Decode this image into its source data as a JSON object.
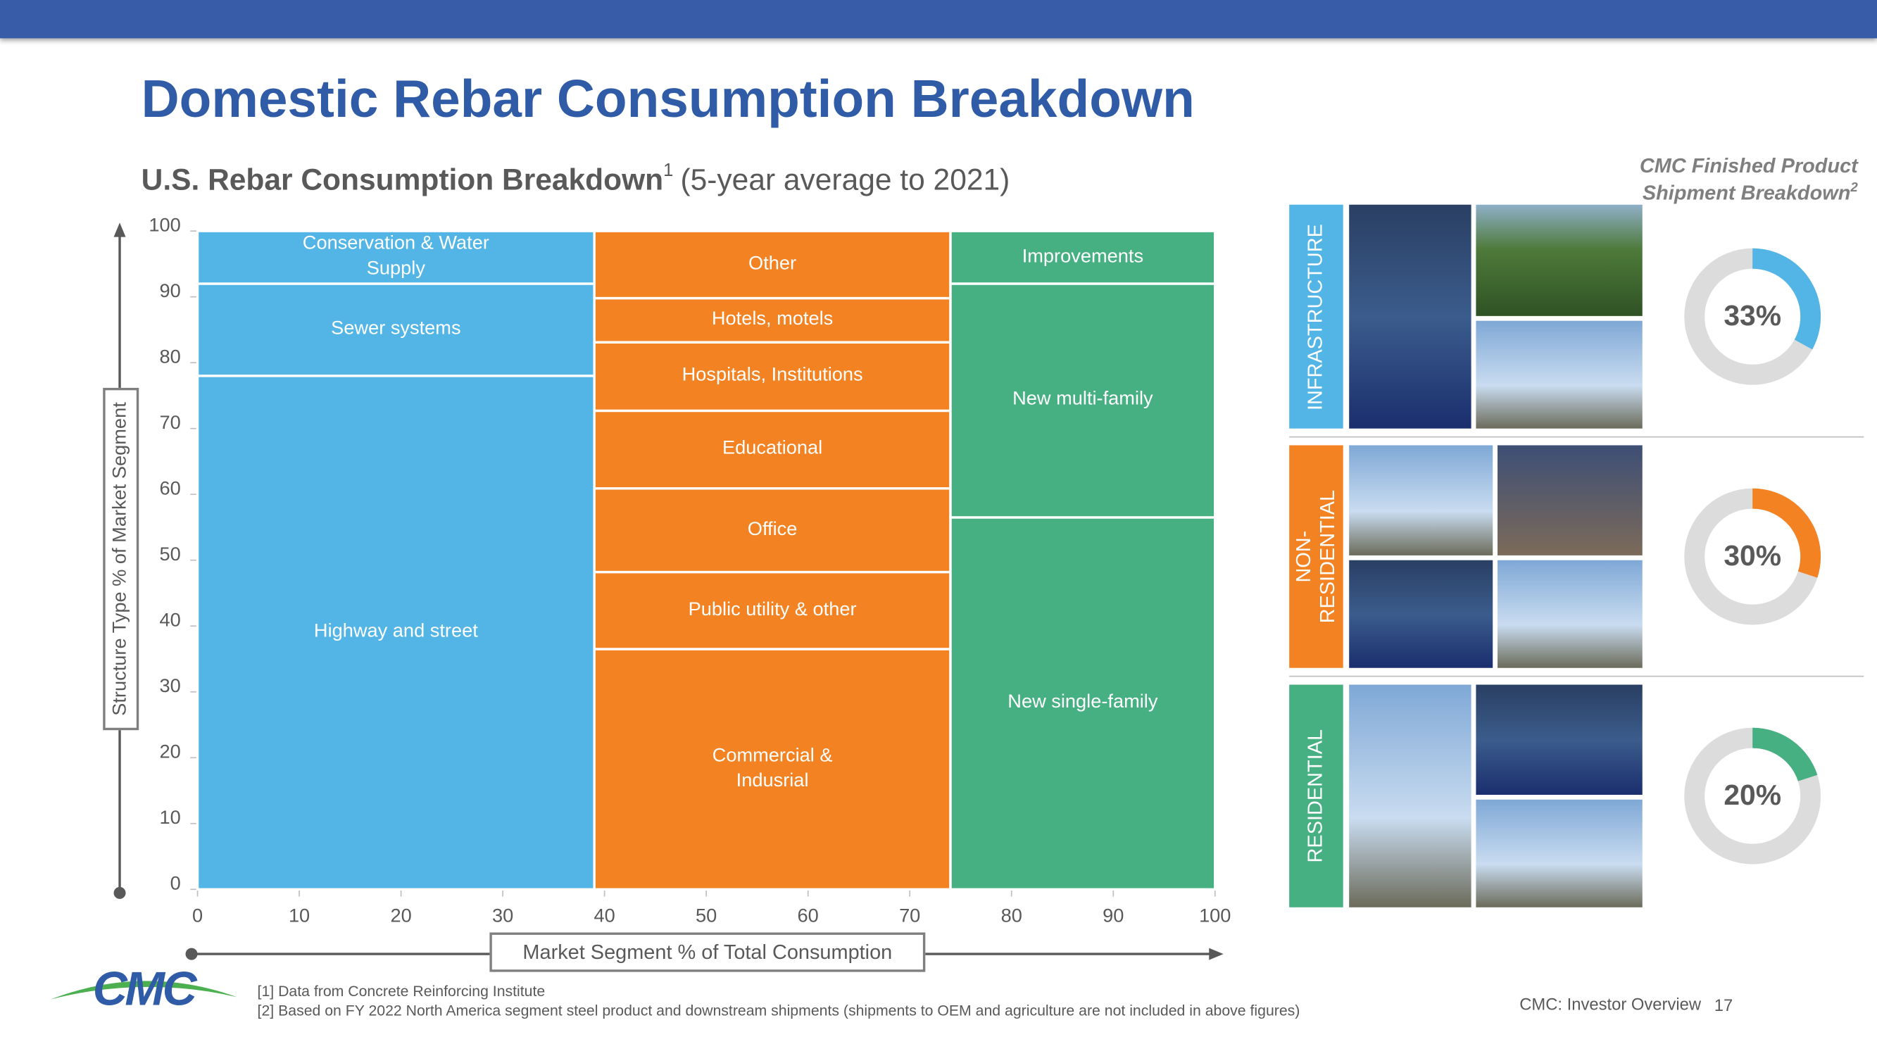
{
  "header": {
    "title": "Domestic Rebar Consumption Breakdown",
    "subtitle": "U.S. Rebar Consumption Breakdown",
    "subtitle_note": "1",
    "subtitle_period": "(5-year average to 2021)"
  },
  "chart_data": [
    {
      "type": "marimekko",
      "xlabel": "Market Segment % of Total Consumption",
      "ylabel": "Structure Type % of Market Segment",
      "xlim": [
        0,
        100
      ],
      "ylim": [
        0,
        100
      ],
      "xticks": [
        0,
        10,
        20,
        30,
        40,
        50,
        60,
        70,
        80,
        90,
        100
      ],
      "yticks": [
        0,
        10,
        20,
        30,
        40,
        50,
        60,
        70,
        80,
        90,
        100
      ],
      "columns": [
        {
          "width": 39,
          "color": "#52b5e6",
          "segments": [
            {
              "name": "Highway and street",
              "value": 78
            },
            {
              "name": "Sewer systems",
              "value": 14
            },
            {
              "name": "Conservation & Water\nSupply",
              "value": 8
            }
          ]
        },
        {
          "width": 35,
          "color": "#f28222",
          "segments": [
            {
              "name": "Commercial &\nIndusrial",
              "value": 36.5
            },
            {
              "name": "Public utility & other",
              "value": 11.7
            },
            {
              "name": "Office",
              "value": 12.7
            },
            {
              "name": "Educational",
              "value": 11.8
            },
            {
              "name": "Hospitals, Institutions",
              "value": 10.4
            },
            {
              "name": "Hotels, motels",
              "value": 6.7
            },
            {
              "name": "Other",
              "value": 10.2
            }
          ]
        },
        {
          "width": 26,
          "color": "#47b083",
          "segments": [
            {
              "name": "New single-family",
              "value": 56.5
            },
            {
              "name": "New multi-family",
              "value": 35.5
            },
            {
              "name": "Improvements",
              "value": 8
            }
          ]
        }
      ]
    },
    {
      "type": "donut",
      "title": "CMC Finished Product\nShipment Breakdown",
      "title_note": "2",
      "categories": [
        "INFRASTRUCTURE",
        "NON-\nRESIDENTIAL",
        "RESIDENTIAL"
      ],
      "values": [
        33,
        30,
        20
      ],
      "value_labels": [
        "33%",
        "30%",
        "20%"
      ],
      "colors": [
        "#52b5e6",
        "#f28222",
        "#47b083"
      ],
      "track_color": "#dcdcdc"
    }
  ],
  "footnotes": [
    "[1] Data from Concrete Reinforcing Institute",
    "[2] Based on FY 2022 North America segment steel product and downstream shipments (shipments to OEM and agriculture are not included in above figures)"
  ],
  "footer": {
    "logo": "CMC",
    "label": "CMC: Investor Overview",
    "page": "17"
  }
}
